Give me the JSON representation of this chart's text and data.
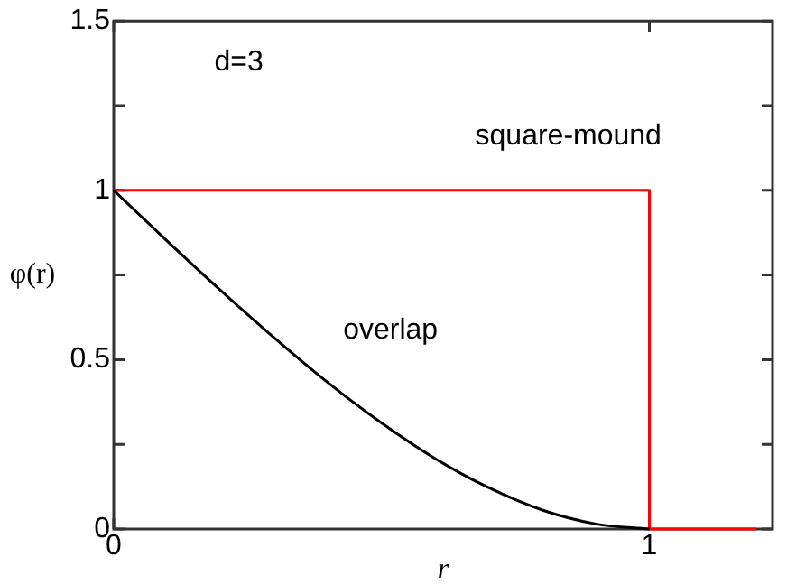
{
  "chart_data": {
    "type": "line",
    "xlabel": "r",
    "ylabel": "φ(r)",
    "xlim": [
      0,
      1.23
    ],
    "xticks": [
      0,
      1
    ],
    "ylim": [
      0,
      1.5
    ],
    "yticks": [
      0,
      {
        "value": 0.25,
        "label": null
      },
      0.5,
      {
        "value": 0.75,
        "label": null
      },
      1,
      {
        "value": 1.25,
        "label": null
      },
      1.5
    ],
    "grid": false,
    "legend": false,
    "marker": "none",
    "line_style": "solid",
    "series": [
      {
        "name": "overlap",
        "color": "#000000",
        "x": [
          0,
          0.1,
          0.2,
          0.3,
          0.4,
          0.5,
          0.6,
          0.7,
          0.8,
          0.9,
          1.0
        ],
        "values": [
          1,
          0.85,
          0.704,
          0.564,
          0.432,
          0.313,
          0.208,
          0.122,
          0.056,
          0.015,
          0
        ]
      },
      {
        "name": "square-mound",
        "color": "#ff0000",
        "x": [
          0,
          1,
          1,
          1.2
        ],
        "values": [
          1,
          1,
          0,
          0
        ]
      }
    ],
    "annotations": [
      "d=3"
    ]
  }
}
